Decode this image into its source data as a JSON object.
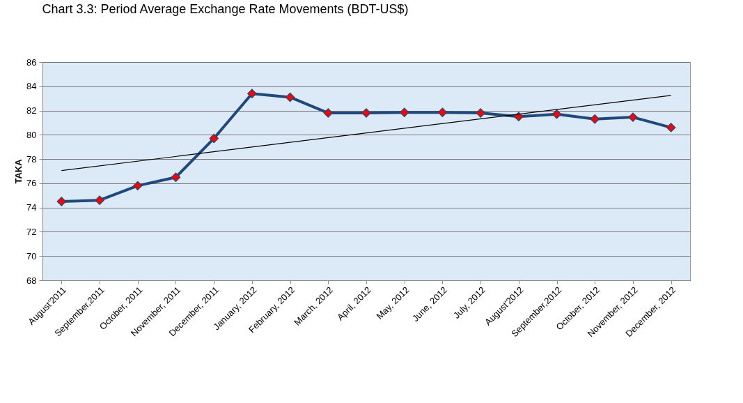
{
  "chart_data": {
    "type": "line",
    "title": "Chart 3.3: Period Average Exchange Rate Movements (BDT-US$)",
    "ylabel": "TAKA",
    "categories": [
      "August'2011",
      "September,2011",
      "October, 2011",
      "November, 2011",
      "December, 2011",
      "January, 2012",
      "February, 2012",
      "March, 2012",
      "April, 2012",
      "May, 2012",
      "June, 2012",
      "July, 2012",
      "August'2012",
      "September,2012",
      "October, 2012",
      "November, 2012",
      "December, 2012"
    ],
    "series": [
      {
        "color": "#1f497d",
        "marker": "diamond",
        "values": [
          74.5,
          74.6,
          75.8,
          76.5,
          79.7,
          83.4,
          83.1,
          81.8,
          81.8,
          81.85,
          81.85,
          81.8,
          81.5,
          81.7,
          81.3,
          81.45,
          80.6
        ]
      },
      {
        "type": "line",
        "color": "#000000",
        "marker": "none",
        "x": [
          "August'2011",
          "December, 2012"
        ],
        "values": [
          77.05,
          83.25
        ]
      }
    ],
    "ylim": [
      68,
      86
    ],
    "yticks": [
      68,
      70,
      72,
      74,
      76,
      78,
      80,
      82,
      84,
      86
    ],
    "grid": "y"
  }
}
